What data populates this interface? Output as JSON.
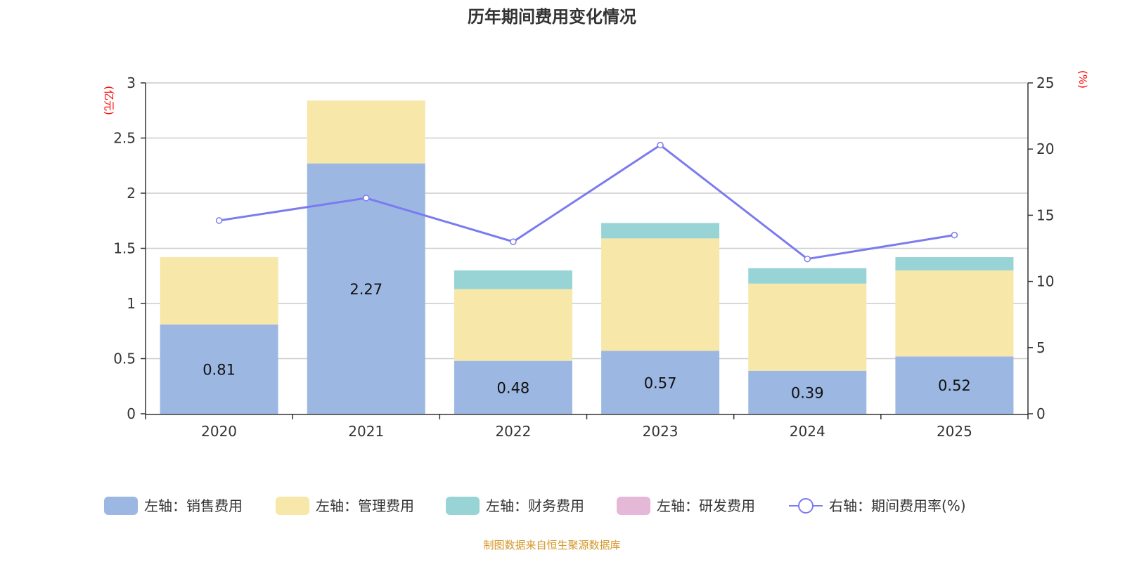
{
  "chart_data": {
    "type": "bar",
    "stacked": true,
    "title": "历年期间费用变化情况",
    "categories": [
      "2020",
      "2021",
      "2022",
      "2023",
      "2024",
      "2025"
    ],
    "left_axis": {
      "unit": "(亿元)",
      "ylim": [
        0,
        3
      ],
      "ticks": [
        "0",
        "0.5",
        "1",
        "1.5",
        "2",
        "2.5",
        "3"
      ]
    },
    "right_axis": {
      "unit": "(%)",
      "ylim": [
        0,
        25
      ],
      "ticks": [
        "0",
        "5",
        "10",
        "15",
        "20",
        "25"
      ]
    },
    "grid": true,
    "legend_position": "bottom",
    "series": [
      {
        "name": "左轴：销售费用",
        "axis": "left",
        "type": "bar",
        "color": "#9cb8e2",
        "values": [
          0.81,
          2.27,
          0.48,
          0.57,
          0.39,
          0.52
        ],
        "labels": [
          "0.81",
          "2.27",
          "0.48",
          "0.57",
          "0.39",
          "0.52"
        ]
      },
      {
        "name": "左轴：管理费用",
        "axis": "left",
        "type": "bar",
        "color": "#f7e7a9",
        "values": [
          0.61,
          0.57,
          0.65,
          1.02,
          0.79,
          0.78
        ]
      },
      {
        "name": "左轴：财务费用",
        "axis": "left",
        "type": "bar",
        "color": "#98d4d6",
        "values": [
          0,
          0,
          0.17,
          0.14,
          0.14,
          0.12
        ]
      },
      {
        "name": "左轴：研发费用",
        "axis": "left",
        "type": "bar",
        "color": "#e6b8d8",
        "values": [
          0,
          0,
          0,
          0,
          0,
          0
        ]
      },
      {
        "name": "右轴：期间费用率(%)",
        "axis": "right",
        "type": "line",
        "color": "#7b7bf0",
        "values": [
          14.6,
          16.3,
          13.0,
          20.3,
          11.7,
          13.5
        ]
      }
    ]
  },
  "source": "制图数据来自恒生聚源数据库"
}
